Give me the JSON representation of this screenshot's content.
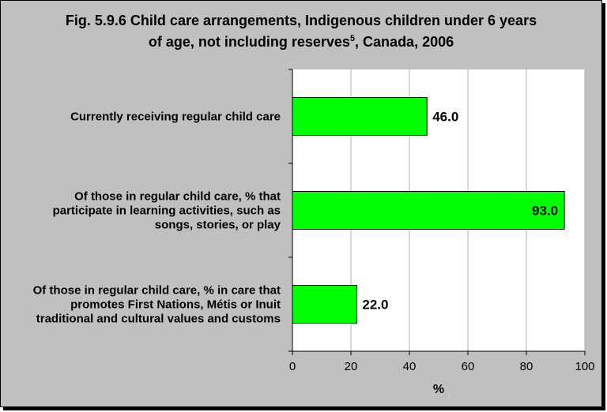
{
  "chart_data": {
    "type": "bar",
    "orientation": "horizontal",
    "title_main": "Fig. 5.9.6 Child care arrangements, Indigenous children under 6 years",
    "title_line2_prefix": "of age, not including reserves",
    "title_superscript": "5",
    "title_line2_suffix": ", Canada, 2006",
    "categories": [
      [
        "Currently receiving regular child care"
      ],
      [
        "Of those in regular child care, % that",
        "participate in learning activities, such as",
        "songs, stories, or play"
      ],
      [
        "Of those in regular child care, % in care that",
        "promotes First Nations, Métis or Inuit",
        "traditional and cultural values and customs"
      ]
    ],
    "values": [
      46.0,
      93.0,
      22.0
    ],
    "value_labels": [
      "46.0",
      "93.0",
      "22.0"
    ],
    "xlabel": "%",
    "xlim": [
      0,
      100
    ],
    "xticks": [
      "0",
      "20",
      "40",
      "60",
      "80",
      "100"
    ],
    "grid": "vertical",
    "bar_color": "#00ff00",
    "plot_background": "#ffffff",
    "chart_background": "#c0c0c0"
  }
}
